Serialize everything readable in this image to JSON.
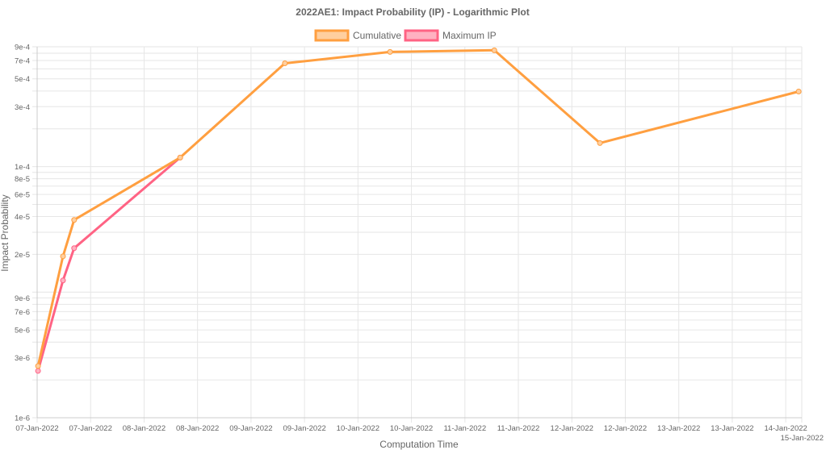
{
  "chart_data": {
    "type": "line",
    "title": "2022AE1: Impact Probability (IP) - Logarithmic Plot",
    "xlabel": "Computation Time",
    "ylabel": "Impact Probability",
    "yscale": "log",
    "ylim": [
      1e-06,
      0.0009
    ],
    "xlim_hours": [
      0,
      171.6
    ],
    "grid": true,
    "legend_position": "top-center",
    "x_tick_labels": [
      "07-Jan-2022",
      "07-Jan-2022",
      "08-Jan-2022",
      "08-Jan-2022",
      "09-Jan-2022",
      "09-Jan-2022",
      "10-Jan-2022",
      "10-Jan-2022",
      "11-Jan-2022",
      "11-Jan-2022",
      "12-Jan-2022",
      "12-Jan-2022",
      "13-Jan-2022",
      "13-Jan-2022",
      "14-Jan-2022",
      "15-Jan-2022"
    ],
    "x_tick_hours": [
      0,
      12,
      24,
      36,
      48,
      60,
      72,
      84,
      96,
      108,
      120,
      132,
      144,
      156,
      168,
      171.6
    ],
    "y_tick_labels": [
      "1e-6",
      "3e-6",
      "5e-6",
      "7e-6",
      "9e-6",
      "2e-5",
      "4e-5",
      "6e-5",
      "8e-5",
      "1e-4",
      "3e-4",
      "5e-4",
      "7e-4",
      "9e-4"
    ],
    "y_tick_values": [
      1e-06,
      3e-06,
      5e-06,
      7e-06,
      9e-06,
      2e-05,
      4e-05,
      6e-05,
      8e-05,
      0.0001,
      0.0003,
      0.0005,
      0.0007,
      0.0009
    ],
    "series": [
      {
        "name": "Cumulative IP",
        "color": "#ff9f40",
        "fill": "#ffcf9f",
        "x_hours": [
          0.2,
          5.8,
          8.3,
          32.1,
          55.6,
          79.2,
          102.6,
          126.3,
          170.9
        ],
        "values": [
          2.58e-06,
          1.93e-05,
          3.76e-05,
          0.000118,
          0.000665,
          0.000819,
          0.000844,
          0.000154,
          0.000396
        ]
      },
      {
        "name": "Maximum IP",
        "color": "#ff6384",
        "fill": "#ffb1c1",
        "x_hours": [
          0.2,
          5.8,
          8.3,
          32.1
        ],
        "values": [
          2.36e-06,
          1.24e-05,
          2.24e-05,
          0.000118
        ]
      }
    ]
  }
}
